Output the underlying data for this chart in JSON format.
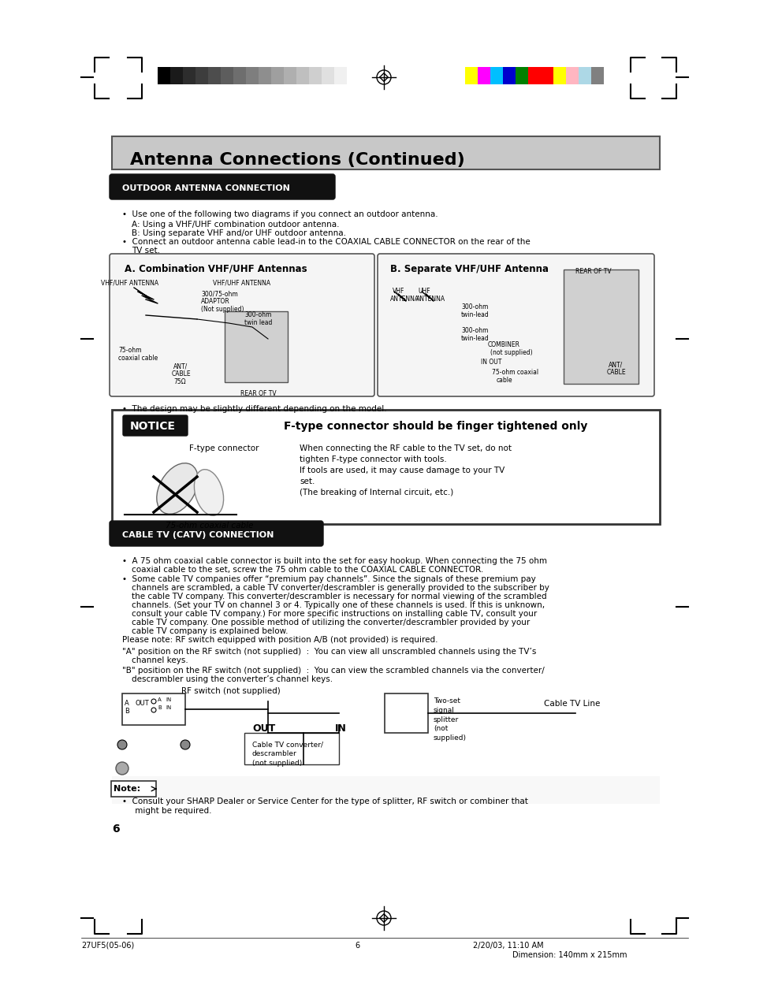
{
  "page_bg": "#ffffff",
  "header_bar_colors_dark": [
    "#000000",
    "#1a1a1a",
    "#2d2d2d",
    "#3d3d3d",
    "#4d4d4d",
    "#5d5d5d",
    "#6e6e6e",
    "#7e7e7e",
    "#8e8e8e",
    "#9f9f9f",
    "#afafaf",
    "#bfbfbf",
    "#cfcfcf",
    "#e0e0e0",
    "#f0f0f0",
    "#ffffff"
  ],
  "header_bar_colors_bright": [
    "#ffff00",
    "#ff00ff",
    "#00bfff",
    "#0000cd",
    "#008000",
    "#ff0000",
    "#ff0000",
    "#ffff00",
    "#ffb6c1",
    "#add8e6",
    "#808080"
  ],
  "title_text": "Antenna Connections (Continued)",
  "title_bg": "#cccccc",
  "section1_label": "OUTDOOR ANTENNA CONNECTION",
  "section1_bg": "#000000",
  "section1_fg": "#ffffff",
  "bullet1": "Use one of the following two diagrams if you connect an outdoor antenna.",
  "bullet1a": "A: Using a VHF/UHF combination outdoor antenna.",
  "bullet1b": "B: Using separate VHF and/or UHF outdoor antenna.",
  "bullet2": "Connect an outdoor antenna cable lead-in to the COAXIAL CABLE CONNECTOR on the rear of the\n     TV set.",
  "diag_a_title": "A. Combination VHF/UHF Antennas",
  "diag_b_title": "B. Separate VHF/UHF Antenna",
  "design_note": "•  The design may be slightly different depending on the model.",
  "notice_title": "F-type connector should be finger tightened only",
  "notice_label": "NOTICE",
  "notice_text1": "When connecting the RF cable to the TV set, do not\ntighten F-type connector with tools.\nIf tools are used, it may cause damage to your TV\nset.\n(The breaking of Internal circuit, etc.)",
  "ftype_label": "F-type connector",
  "cable_label": "75-ohm coaxial cable",
  "section2_label": "CABLE TV (CATV) CONNECTION",
  "section2_bg": "#000000",
  "section2_fg": "#ffffff",
  "catv_bullet1": "A 75 ohm coaxial cable connector is built into the set for easy hookup. When connecting the 75 ohm\n     coaxial cable to the set, screw the 75 ohm cable to the COAXIAL CABLE CONNECTOR.",
  "catv_bullet2": "Some cable TV companies offer “premium pay channels”. Since the signals of these premium pay\n     channels are scrambled, a cable TV converter/descrambler is generally provided to the subscriber by\n     the cable TV company. This converter/descrambler is necessary for normal viewing of the scrambled\n     channels. (Set your TV on channel 3 or 4. Typically one of these channels is used. If this is unknown,\n     consult your cable TV company.) For more specific instructions on installing cable TV, consult your\n     cable TV company. One possible method of utilizing the converter/descrambler provided by your\n     cable TV company is explained below.",
  "rf_note": "Please note: RF switch equipped with position A/B (not provided) is required.",
  "pos_a": "\"A\" position on the RF switch (not supplied)  :  You can view all unscrambled channels using the TV’s\n                                                                          channel keys.",
  "pos_b": "\"B\" position on the RF switch (not supplied)  :  You can view the scrambled channels via the converter/\n                                                                          descrambler using the converter’s channel keys.",
  "rf_switch_label": "RF switch (not supplied)",
  "two_set_label": "Two-set\nsignal\nsplitter\n(not\nsupplied)",
  "cable_tv_line_label": "Cable TV Line",
  "out_label": "OUT",
  "in_label": "IN",
  "converter_label": "Cable TV converter/\ndescrambler\n(not supplied)",
  "note_label": "Note:",
  "note_text": "•  Consult your SHARP Dealer or Service Center for the type of splitter, RF switch or combiner that\n     might be required.",
  "page_num": "6",
  "footer_left": "27UF5(05-06)",
  "footer_center": "6",
  "footer_right": "2/20/03, 11:10 AM",
  "footer_dim": "Dimension: 140mm x 215mm"
}
